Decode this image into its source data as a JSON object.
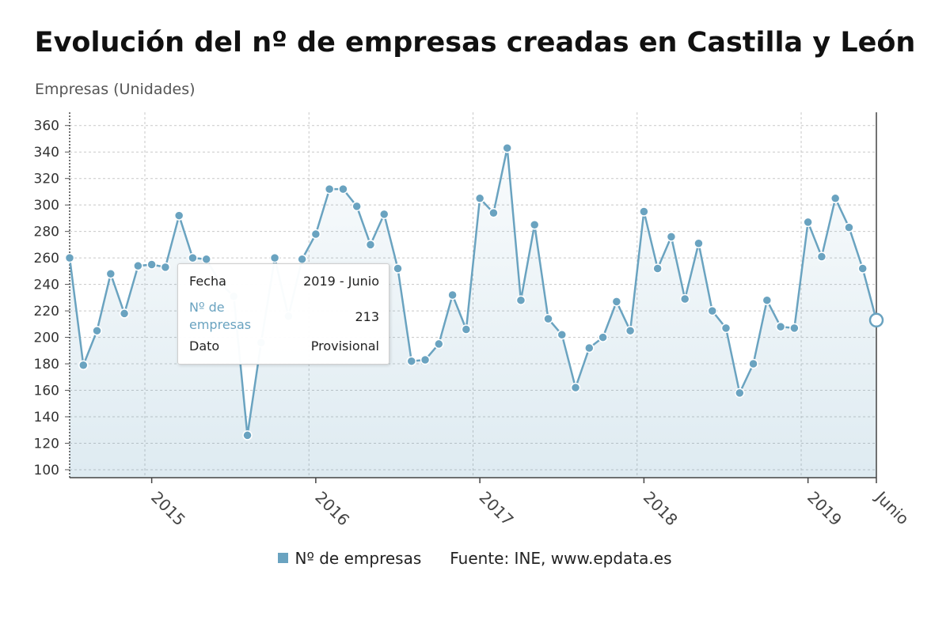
{
  "colors": {
    "series": "#6aa3c0",
    "tooltip_accent": "#6aa3c0",
    "grid": "#c8c8c8"
  },
  "tooltip": {
    "rows": [
      {
        "key": "Fecha",
        "value": "2019 - Junio"
      },
      {
        "key": "Nº de empresas",
        "value": "213"
      },
      {
        "key": "Dato",
        "value": "Provisional"
      }
    ]
  },
  "legend": {
    "series_label": "Nº de empresas",
    "source": "Fuente: INE, www.epdata.es"
  },
  "chart_data": {
    "type": "line",
    "title": "Evolución del nº de empresas creadas en Castilla y León",
    "ylabel": "Empresas (Unidades)",
    "xlabel": "",
    "ylim": [
      94,
      370
    ],
    "yticks": [
      100,
      120,
      140,
      160,
      180,
      200,
      220,
      240,
      260,
      280,
      300,
      320,
      340,
      360
    ],
    "grid": true,
    "legend_position": "bottom",
    "x_start": "2014-07",
    "x_end": "2019-06",
    "xtick_labels": [
      {
        "label": "2015",
        "date": "2015-01"
      },
      {
        "label": "2016",
        "date": "2016-01"
      },
      {
        "label": "2017",
        "date": "2017-01"
      },
      {
        "label": "2018",
        "date": "2018-01"
      },
      {
        "label": "2019",
        "date": "2019-01"
      },
      {
        "label": "Junio",
        "date": "2019-06"
      }
    ],
    "series": [
      {
        "name": "Nº de empresas",
        "x": [
          "2014-07",
          "2014-08",
          "2014-09",
          "2014-10",
          "2014-11",
          "2014-12",
          "2015-01",
          "2015-02",
          "2015-03",
          "2015-04",
          "2015-05",
          "2015-06",
          "2015-07",
          "2015-08",
          "2015-09",
          "2015-10",
          "2015-11",
          "2015-12",
          "2016-01",
          "2016-02",
          "2016-03",
          "2016-04",
          "2016-05",
          "2016-06",
          "2016-07",
          "2016-08",
          "2016-09",
          "2016-10",
          "2016-11",
          "2016-12",
          "2017-01",
          "2017-02",
          "2017-03",
          "2017-04",
          "2017-05",
          "2017-06",
          "2017-07",
          "2017-08",
          "2017-09",
          "2017-10",
          "2017-11",
          "2017-12",
          "2018-01",
          "2018-02",
          "2018-03",
          "2018-04",
          "2018-05",
          "2018-06",
          "2018-07",
          "2018-08",
          "2018-09",
          "2018-10",
          "2018-11",
          "2018-12",
          "2019-01",
          "2019-02",
          "2019-03",
          "2019-04",
          "2019-05",
          "2019-06"
        ],
        "values": [
          260,
          179,
          205,
          248,
          218,
          254,
          255,
          253,
          292,
          260,
          259,
          241,
          231,
          126,
          196,
          260,
          216,
          259,
          278,
          312,
          312,
          299,
          270,
          293,
          252,
          182,
          183,
          195,
          232,
          206,
          305,
          294,
          343,
          228,
          285,
          214,
          202,
          162,
          192,
          200,
          227,
          205,
          295,
          252,
          276,
          229,
          271,
          220,
          207,
          158,
          180,
          228,
          208,
          207,
          287,
          261,
          305,
          283,
          252,
          213
        ]
      }
    ]
  }
}
